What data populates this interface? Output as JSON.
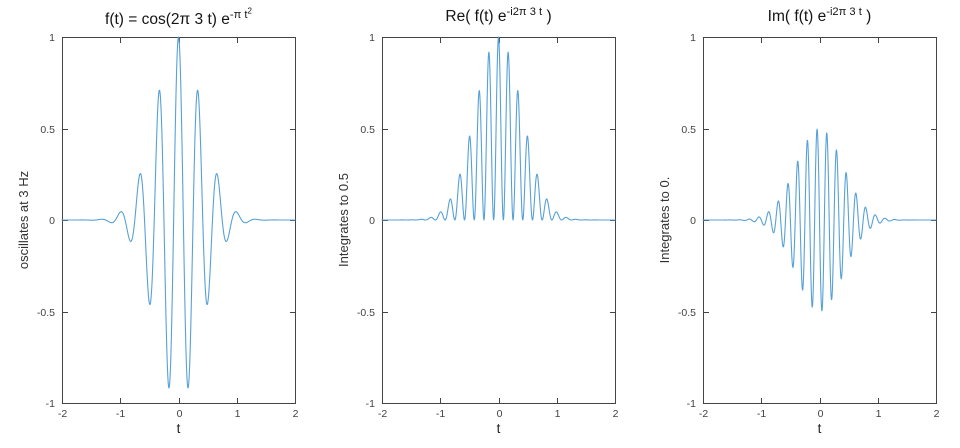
{
  "figure": {
    "background": "#ffffff",
    "line_color": "#57A1D8",
    "axis_color": "#444444",
    "tick_label_color": "#434343",
    "text_color": "#141414"
  },
  "chart_data": [
    {
      "type": "line",
      "title": {
        "prefix": "f(t) = cos(2π 3 t) e",
        "sup": "-π t",
        "sup2": "2",
        "suffix": ""
      },
      "xlabel": "t",
      "ylabel": "oscillates at 3 Hz",
      "xlim": [
        -2,
        2
      ],
      "ylim": [
        -1,
        1
      ],
      "xticks": [
        -2,
        -1,
        0,
        1,
        2
      ],
      "xtick_labels": [
        "-2",
        "-1",
        "0",
        "1",
        "2"
      ],
      "yticks": [
        -1,
        -0.5,
        0,
        0.5,
        1
      ],
      "ytick_labels": [
        "-1",
        "-0.5",
        "0",
        "0.5",
        "1"
      ],
      "grid": false,
      "box": true,
      "legend": null,
      "series": [
        {
          "name": "f(t) = cos(2*pi*3*t)*exp(-pi*t^2)",
          "expr": "cos(2*PI*3*t)*exp(-PI*t*t)",
          "t_range": [
            -2,
            2
          ],
          "t_step": 0.005,
          "peak_value": 1,
          "carrier_frequency_hz": 3
        }
      ]
    },
    {
      "type": "line",
      "title": {
        "prefix": "Re( f(t) e",
        "sup": "-i2π 3 t",
        "suffix": " )"
      },
      "xlabel": "t",
      "ylabel": "Integrates to 0.5",
      "xlim": [
        -2,
        2
      ],
      "ylim": [
        -1,
        1
      ],
      "xticks": [
        -2,
        -1,
        0,
        1,
        2
      ],
      "xtick_labels": [
        "-2",
        "-1",
        "0",
        "1",
        "2"
      ],
      "yticks": [
        -1,
        -0.5,
        0,
        0.5,
        1
      ],
      "ytick_labels": [
        "-1",
        "-0.5",
        "0",
        "0.5",
        "1"
      ],
      "grid": false,
      "box": true,
      "legend": null,
      "series": [
        {
          "name": "Re(f(t)*exp(-i*2*pi*3*t)) = cos^2(2*pi*3*t)*exp(-pi*t^2)",
          "expr": "pow(cos(2*PI*3*t),2)*exp(-PI*t*t)",
          "t_range": [
            -2,
            2
          ],
          "t_step": 0.005,
          "peak_value": 1,
          "integral": 0.5
        }
      ]
    },
    {
      "type": "line",
      "title": {
        "prefix": "Im( f(t) e",
        "sup": "-i2π 3 t",
        "suffix": " )"
      },
      "xlabel": "t",
      "ylabel": "Integrates to 0.",
      "xlim": [
        -2,
        2
      ],
      "ylim": [
        -1,
        1
      ],
      "xticks": [
        -2,
        -1,
        0,
        1,
        2
      ],
      "xtick_labels": [
        "-2",
        "-1",
        "0",
        "1",
        "2"
      ],
      "yticks": [
        -1,
        -0.5,
        0,
        0.5,
        1
      ],
      "ytick_labels": [
        "-1",
        "-0.5",
        "0",
        "0.5",
        "1"
      ],
      "grid": false,
      "box": true,
      "legend": null,
      "series": [
        {
          "name": "Im(f(t)*exp(-i*2*pi*3*t)) = -0.5*sin(2*pi*6*t)*exp(-pi*t^2)",
          "expr": "-0.5*sin(2*PI*6*t)*exp(-PI*t*t)",
          "t_range": [
            -2,
            2
          ],
          "t_step": 0.005,
          "peak_value": 0.5,
          "integral": 0
        }
      ]
    }
  ]
}
